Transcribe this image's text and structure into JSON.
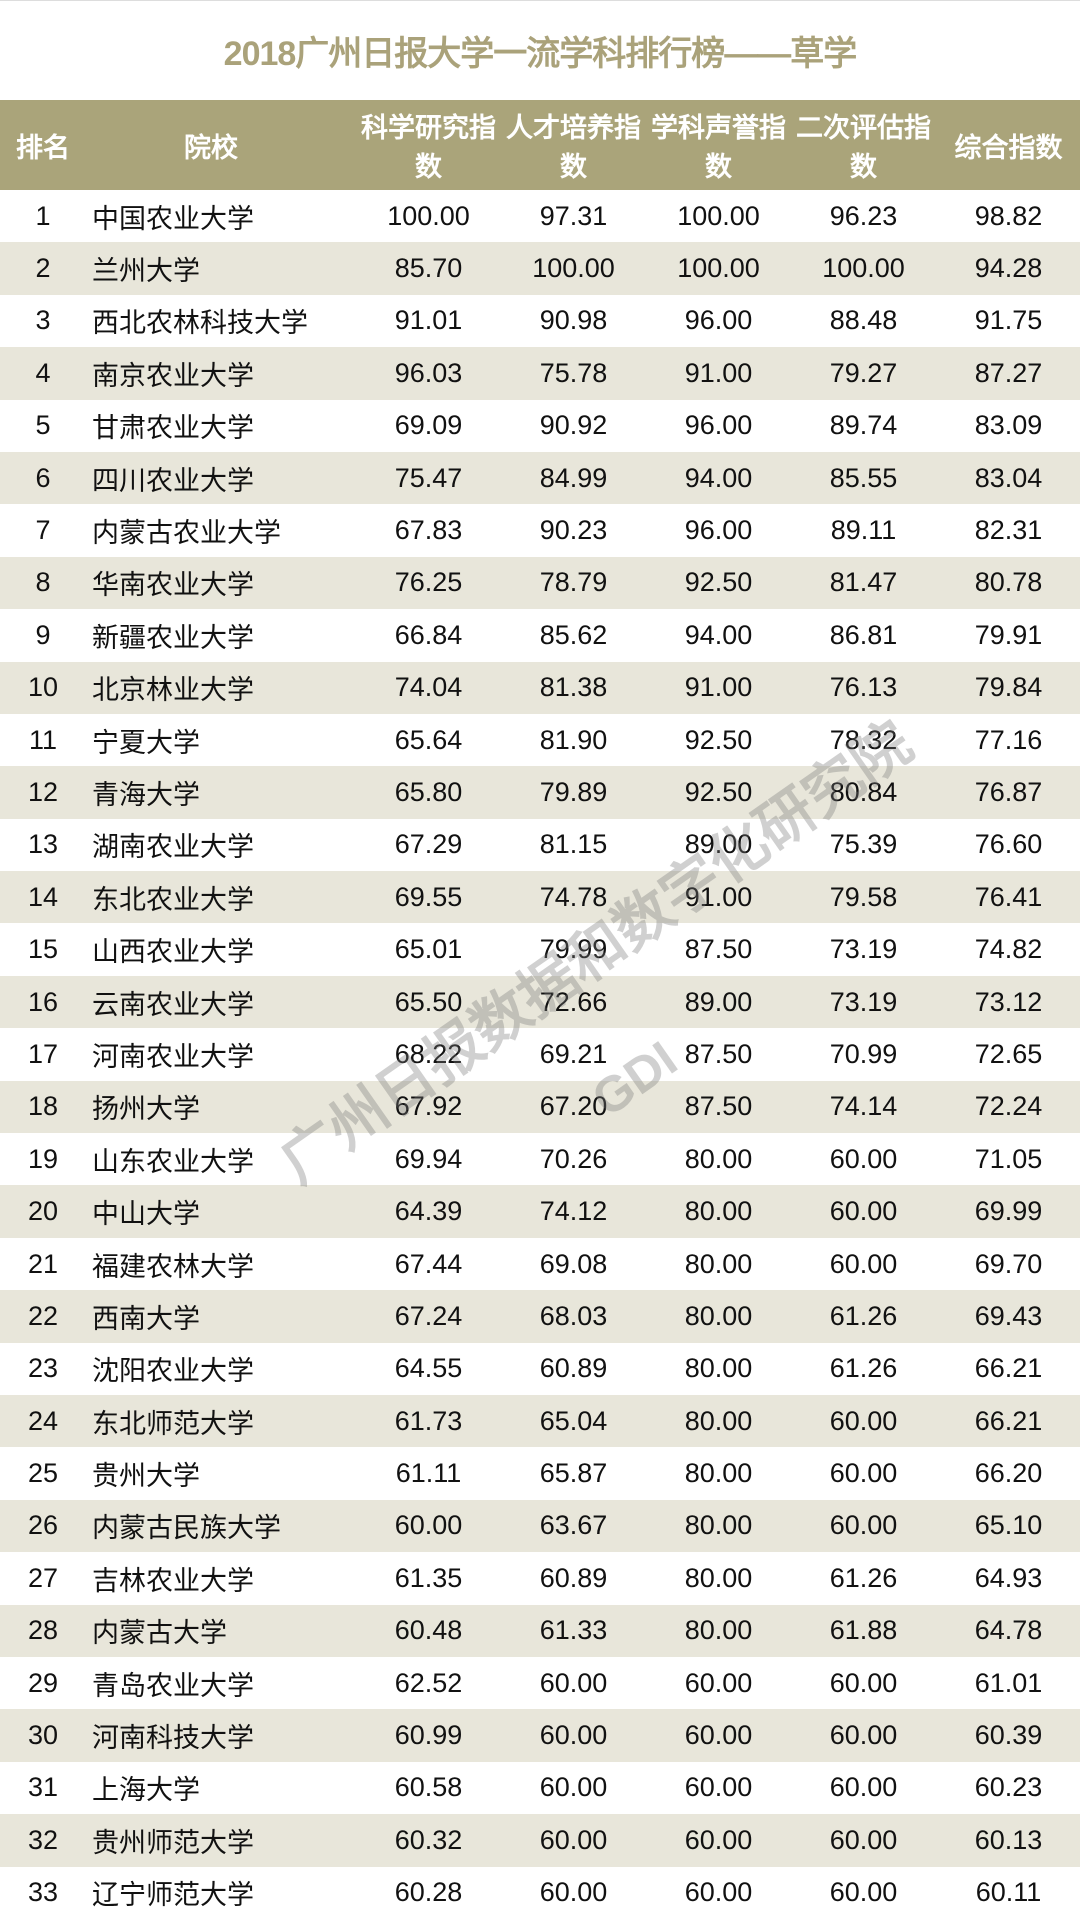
{
  "title": "2018广州日报大学一流学科排行榜——草学",
  "columns": [
    "排名",
    "院校",
    "科学研究指数",
    "人才培养指数",
    "学科声誉指数",
    "二次评估指数",
    "综合指数"
  ],
  "rows": [
    [
      "1",
      "中国农业大学",
      "100.00",
      "97.31",
      "100.00",
      "96.23",
      "98.82"
    ],
    [
      "2",
      "兰州大学",
      "85.70",
      "100.00",
      "100.00",
      "100.00",
      "94.28"
    ],
    [
      "3",
      "西北农林科技大学",
      "91.01",
      "90.98",
      "96.00",
      "88.48",
      "91.75"
    ],
    [
      "4",
      "南京农业大学",
      "96.03",
      "75.78",
      "91.00",
      "79.27",
      "87.27"
    ],
    [
      "5",
      "甘肃农业大学",
      "69.09",
      "90.92",
      "96.00",
      "89.74",
      "83.09"
    ],
    [
      "6",
      "四川农业大学",
      "75.47",
      "84.99",
      "94.00",
      "85.55",
      "83.04"
    ],
    [
      "7",
      "内蒙古农业大学",
      "67.83",
      "90.23",
      "96.00",
      "89.11",
      "82.31"
    ],
    [
      "8",
      "华南农业大学",
      "76.25",
      "78.79",
      "92.50",
      "81.47",
      "80.78"
    ],
    [
      "9",
      "新疆农业大学",
      "66.84",
      "85.62",
      "94.00",
      "86.81",
      "79.91"
    ],
    [
      "10",
      "北京林业大学",
      "74.04",
      "81.38",
      "91.00",
      "76.13",
      "79.84"
    ],
    [
      "11",
      "宁夏大学",
      "65.64",
      "81.90",
      "92.50",
      "78.32",
      "77.16"
    ],
    [
      "12",
      "青海大学",
      "65.80",
      "79.89",
      "92.50",
      "80.84",
      "76.87"
    ],
    [
      "13",
      "湖南农业大学",
      "67.29",
      "81.15",
      "89.00",
      "75.39",
      "76.60"
    ],
    [
      "14",
      "东北农业大学",
      "69.55",
      "74.78",
      "91.00",
      "79.58",
      "76.41"
    ],
    [
      "15",
      "山西农业大学",
      "65.01",
      "79.99",
      "87.50",
      "73.19",
      "74.82"
    ],
    [
      "16",
      "云南农业大学",
      "65.50",
      "72.66",
      "89.00",
      "73.19",
      "73.12"
    ],
    [
      "17",
      "河南农业大学",
      "68.22",
      "69.21",
      "87.50",
      "70.99",
      "72.65"
    ],
    [
      "18",
      "扬州大学",
      "67.92",
      "67.20",
      "87.50",
      "74.14",
      "72.24"
    ],
    [
      "19",
      "山东农业大学",
      "69.94",
      "70.26",
      "80.00",
      "60.00",
      "71.05"
    ],
    [
      "20",
      "中山大学",
      "64.39",
      "74.12",
      "80.00",
      "60.00",
      "69.99"
    ],
    [
      "21",
      "福建农林大学",
      "67.44",
      "69.08",
      "80.00",
      "60.00",
      "69.70"
    ],
    [
      "22",
      "西南大学",
      "67.24",
      "68.03",
      "80.00",
      "61.26",
      "69.43"
    ],
    [
      "23",
      "沈阳农业大学",
      "64.55",
      "60.89",
      "80.00",
      "61.26",
      "66.21"
    ],
    [
      "24",
      "东北师范大学",
      "61.73",
      "65.04",
      "80.00",
      "60.00",
      "66.21"
    ],
    [
      "25",
      "贵州大学",
      "61.11",
      "65.87",
      "80.00",
      "60.00",
      "66.20"
    ],
    [
      "26",
      "内蒙古民族大学",
      "60.00",
      "63.67",
      "80.00",
      "60.00",
      "65.10"
    ],
    [
      "27",
      "吉林农业大学",
      "61.35",
      "60.89",
      "80.00",
      "61.26",
      "64.93"
    ],
    [
      "28",
      "内蒙古大学",
      "60.48",
      "61.33",
      "80.00",
      "61.88",
      "64.78"
    ],
    [
      "29",
      "青岛农业大学",
      "62.52",
      "60.00",
      "60.00",
      "60.00",
      "61.01"
    ],
    [
      "30",
      "河南科技大学",
      "60.99",
      "60.00",
      "60.00",
      "60.00",
      "60.39"
    ],
    [
      "31",
      "上海大学",
      "60.58",
      "60.00",
      "60.00",
      "60.00",
      "60.23"
    ],
    [
      "32",
      "贵州师范大学",
      "60.32",
      "60.00",
      "60.00",
      "60.00",
      "60.13"
    ],
    [
      "33",
      "辽宁师范大学",
      "60.28",
      "60.00",
      "60.00",
      "60.00",
      "60.11"
    ]
  ],
  "watermark": {
    "text": "广州日报数据和数字化研究院",
    "sub": "GDI"
  },
  "colors": {
    "header_bg": "#aaa47a",
    "title": "#aaa27a",
    "alt_row": "#e8e6da"
  }
}
